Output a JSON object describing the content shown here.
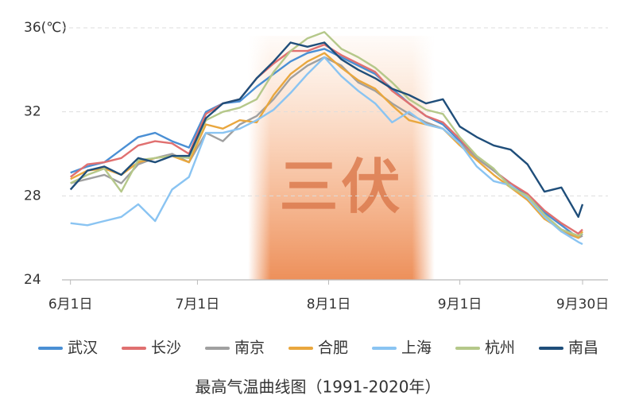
{
  "chart_data": {
    "type": "line",
    "title": "最高气温曲线图（1991-2020年）",
    "annotation": "三伏",
    "shade": [
      42,
      86
    ],
    "xlim": [
      -2,
      127
    ],
    "xticks": [
      {
        "value": 0,
        "label": "6月1日"
      },
      {
        "value": 30,
        "label": "7月1日"
      },
      {
        "value": 61,
        "label": "8月1日"
      },
      {
        "value": 92,
        "label": "9月1日"
      },
      {
        "value": 121,
        "label": "9月30日"
      }
    ],
    "ylim": [
      24,
      36
    ],
    "yticks": [
      24,
      28,
      32,
      {
        "value": 36,
        "label": "36(℃)"
      }
    ],
    "grid": true,
    "legend": "bottom",
    "x": [
      0,
      4,
      8,
      12,
      16,
      20,
      24,
      28,
      32,
      36,
      40,
      44,
      48,
      52,
      56,
      60,
      64,
      68,
      72,
      76,
      80,
      84,
      88,
      92,
      96,
      100,
      104,
      108,
      112,
      116,
      120,
      121
    ],
    "series": [
      {
        "name": "武汉",
        "color": "#4a8fd4",
        "values": [
          29.1,
          29.4,
          29.6,
          30.2,
          30.8,
          31.0,
          30.6,
          30.3,
          32.0,
          32.4,
          32.5,
          33.2,
          33.8,
          34.4,
          34.8,
          35.0,
          34.6,
          34.2,
          33.8,
          33.1,
          32.4,
          31.8,
          31.4,
          30.6,
          29.8,
          29.2,
          28.6,
          28.0,
          27.2,
          26.6,
          26.0,
          26.2
        ]
      },
      {
        "name": "长沙",
        "color": "#e07070",
        "values": [
          28.9,
          29.5,
          29.6,
          29.8,
          30.4,
          30.6,
          30.5,
          30.0,
          31.9,
          32.4,
          32.6,
          33.6,
          34.3,
          34.9,
          34.9,
          35.2,
          34.7,
          34.3,
          33.9,
          33.0,
          32.4,
          31.8,
          31.5,
          30.7,
          29.8,
          29.2,
          28.6,
          28.1,
          27.3,
          26.7,
          26.2,
          26.4
        ]
      },
      {
        "name": "南京",
        "color": "#a0a0a0",
        "values": [
          28.6,
          28.8,
          29.0,
          28.6,
          29.5,
          29.8,
          30.0,
          29.6,
          31.0,
          30.6,
          31.4,
          31.8,
          32.6,
          33.6,
          34.2,
          34.6,
          34.2,
          33.4,
          33.0,
          32.4,
          31.9,
          31.5,
          31.2,
          30.5,
          29.8,
          29.2,
          28.5,
          27.8,
          27.0,
          26.3,
          26.0,
          26.1
        ]
      },
      {
        "name": "合肥",
        "color": "#e9a73e",
        "values": [
          28.8,
          29.2,
          29.3,
          29.0,
          29.6,
          29.8,
          29.9,
          29.6,
          31.4,
          31.2,
          31.6,
          31.5,
          32.8,
          33.8,
          34.4,
          34.8,
          34.1,
          33.5,
          33.1,
          32.3,
          31.6,
          31.4,
          31.2,
          30.4,
          29.7,
          29.0,
          28.4,
          27.8,
          26.9,
          26.4,
          26.0,
          26.3
        ]
      },
      {
        "name": "上海",
        "color": "#8ac4f2",
        "values": [
          26.7,
          26.6,
          26.8,
          27.0,
          27.6,
          26.8,
          28.3,
          28.9,
          31.0,
          31.0,
          31.2,
          31.6,
          32.1,
          32.9,
          33.8,
          34.6,
          33.7,
          33.0,
          32.4,
          31.5,
          32.0,
          31.4,
          31.2,
          30.5,
          29.4,
          28.7,
          28.5,
          27.9,
          27.0,
          26.3,
          25.8,
          25.7
        ]
      },
      {
        "name": "杭州",
        "color": "#b5c88a",
        "values": [
          28.6,
          29.0,
          29.3,
          28.2,
          29.7,
          29.8,
          29.9,
          29.8,
          31.6,
          32.0,
          32.2,
          32.6,
          33.9,
          34.9,
          35.5,
          35.8,
          35.0,
          34.6,
          34.1,
          33.4,
          32.6,
          32.1,
          31.9,
          30.8,
          29.9,
          29.3,
          28.4,
          28.0,
          27.1,
          26.4,
          26.1,
          26.2
        ]
      },
      {
        "name": "南昌",
        "color": "#1f4e7a",
        "values": [
          28.3,
          29.2,
          29.4,
          29.0,
          29.8,
          29.6,
          29.9,
          29.9,
          31.7,
          32.4,
          32.6,
          33.6,
          34.4,
          35.3,
          35.1,
          35.3,
          34.5,
          34.0,
          33.6,
          33.1,
          32.8,
          32.4,
          32.6,
          31.3,
          30.8,
          30.4,
          30.2,
          29.5,
          28.2,
          28.4,
          27.0,
          27.6
        ]
      }
    ]
  }
}
